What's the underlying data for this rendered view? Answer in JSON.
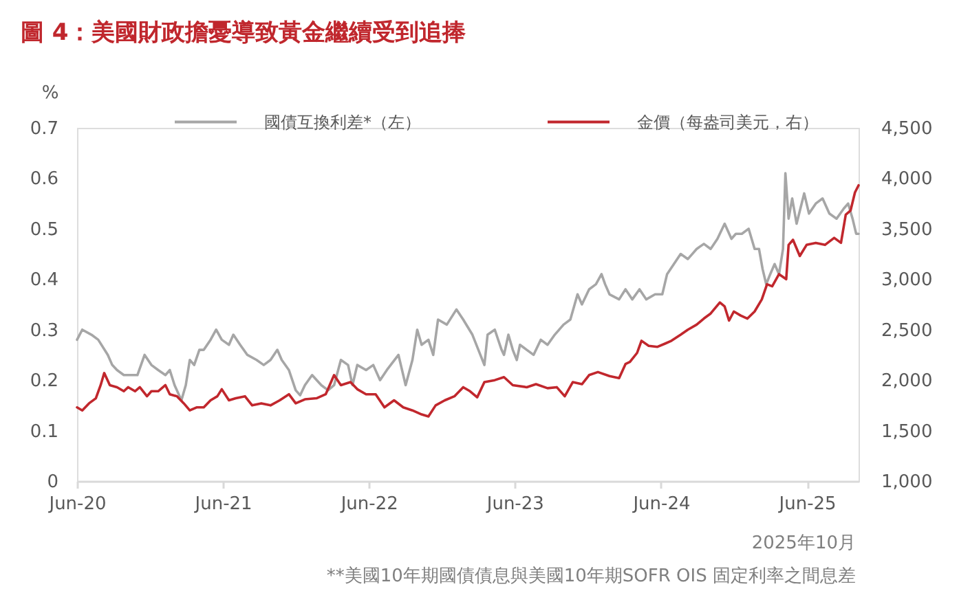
{
  "chart_data": {
    "type": "line",
    "title": "圖 4：美國財政擔憂導致黃金繼續受到追捧",
    "ylabel": "%",
    "annotations": [
      "2025年10月",
      "**美國10年期國債債息與美國10年期SOFR OIS 固定利率之間息差"
    ],
    "legend": "top",
    "xlim": [
      "2020-06-01",
      "2025-10-08"
    ],
    "xticks": [
      {
        "value": "2020-06-01",
        "label": "Jun-20"
      },
      {
        "value": "2021-06-01",
        "label": "Jun-21"
      },
      {
        "value": "2022-06-01",
        "label": "Jun-22"
      },
      {
        "value": "2023-06-01",
        "label": "Jun-23"
      },
      {
        "value": "2024-06-01",
        "label": "Jun-24"
      },
      {
        "value": "2025-06-01",
        "label": "Jun-25"
      }
    ],
    "ylim": [
      0,
      0.7
    ],
    "yticks": [
      0,
      0.1,
      0.2,
      0.3,
      0.4,
      0.5,
      0.6,
      0.7
    ],
    "y2lim": [
      1000,
      4500
    ],
    "y2ticks": [
      {
        "value": 1000,
        "label": "1,000"
      },
      {
        "value": 1500,
        "label": "1,500"
      },
      {
        "value": 2000,
        "label": "2,000"
      },
      {
        "value": 2500,
        "label": "2,500"
      },
      {
        "value": 3000,
        "label": "3,000"
      },
      {
        "value": 3500,
        "label": "3,500"
      },
      {
        "value": 4000,
        "label": "4,000"
      },
      {
        "value": 4500,
        "label": "4,500"
      }
    ],
    "series": [
      {
        "name": "國債互換利差*（左）",
        "color": "#a6a6a6",
        "x": [
          "2020-06-01",
          "2020-06-14",
          "2020-07-07",
          "2020-07-24",
          "2020-08-17",
          "2020-08-28",
          "2020-09-09",
          "2020-09-26",
          "2020-10-13",
          "2020-10-30",
          "2020-11-17",
          "2020-12-04",
          "2020-12-21",
          "2021-01-08",
          "2021-01-19",
          "2021-01-31",
          "2021-02-17",
          "2021-02-28",
          "2021-03-10",
          "2021-03-21",
          "2021-04-03",
          "2021-04-14",
          "2021-05-01",
          "2021-05-15",
          "2021-05-29",
          "2021-06-16",
          "2021-06-27",
          "2021-07-14",
          "2021-08-01",
          "2021-08-24",
          "2021-09-11",
          "2021-09-28",
          "2021-10-15",
          "2021-10-26",
          "2021-11-13",
          "2021-11-30",
          "2021-12-11",
          "2021-12-23",
          "2022-01-10",
          "2022-02-02",
          "2022-02-19",
          "2022-03-06",
          "2022-03-23",
          "2022-04-10",
          "2022-04-21",
          "2022-05-03",
          "2022-05-25",
          "2022-06-12",
          "2022-06-29",
          "2022-07-16",
          "2022-08-14",
          "2022-09-01",
          "2022-09-18",
          "2022-09-30",
          "2022-10-11",
          "2022-10-28",
          "2022-11-09",
          "2022-11-21",
          "2022-12-13",
          "2023-01-06",
          "2023-01-23",
          "2023-02-15",
          "2023-03-02",
          "2023-03-17",
          "2023-03-25",
          "2023-04-12",
          "2023-04-29",
          "2023-05-05",
          "2023-05-16",
          "2023-05-27",
          "2023-06-06",
          "2023-06-14",
          "2023-07-01",
          "2023-07-18",
          "2023-08-05",
          "2023-08-22",
          "2023-09-09",
          "2023-10-01",
          "2023-10-18",
          "2023-11-05",
          "2023-11-16",
          "2023-12-04",
          "2023-12-21",
          "2024-01-04",
          "2024-01-13",
          "2024-01-24",
          "2024-02-17",
          "2024-03-04",
          "2024-03-21",
          "2024-04-08",
          "2024-04-25",
          "2024-05-17",
          "2024-06-04",
          "2024-06-16",
          "2024-07-03",
          "2024-07-20",
          "2024-08-07",
          "2024-08-18",
          "2024-08-29",
          "2024-09-16",
          "2024-10-03",
          "2024-10-20",
          "2024-11-07",
          "2024-11-24",
          "2024-12-05",
          "2024-12-20",
          "2025-01-06",
          "2025-01-21",
          "2025-02-01",
          "2025-02-10",
          "2025-02-19",
          "2025-03-01",
          "2025-03-12",
          "2025-03-23",
          "2025-04-02",
          "2025-04-08",
          "2025-04-16",
          "2025-04-25",
          "2025-05-06",
          "2025-05-25",
          "2025-06-06",
          "2025-06-23",
          "2025-07-10",
          "2025-07-27",
          "2025-08-14",
          "2025-09-01",
          "2025-09-12",
          "2025-09-23",
          "2025-10-02",
          "2025-10-08"
        ],
        "values": [
          0.28,
          0.3,
          0.29,
          0.28,
          0.25,
          0.23,
          0.22,
          0.21,
          0.21,
          0.21,
          0.25,
          0.23,
          0.22,
          0.21,
          0.22,
          0.19,
          0.16,
          0.19,
          0.24,
          0.23,
          0.26,
          0.26,
          0.28,
          0.3,
          0.28,
          0.27,
          0.29,
          0.27,
          0.25,
          0.24,
          0.23,
          0.24,
          0.26,
          0.24,
          0.22,
          0.18,
          0.17,
          0.19,
          0.21,
          0.19,
          0.18,
          0.19,
          0.24,
          0.23,
          0.19,
          0.23,
          0.22,
          0.23,
          0.2,
          0.22,
          0.25,
          0.19,
          0.24,
          0.3,
          0.27,
          0.28,
          0.25,
          0.32,
          0.31,
          0.34,
          0.32,
          0.29,
          0.26,
          0.23,
          0.29,
          0.3,
          0.26,
          0.25,
          0.29,
          0.26,
          0.24,
          0.27,
          0.26,
          0.25,
          0.28,
          0.27,
          0.29,
          0.31,
          0.32,
          0.37,
          0.35,
          0.38,
          0.39,
          0.41,
          0.39,
          0.37,
          0.36,
          0.38,
          0.36,
          0.38,
          0.36,
          0.37,
          0.37,
          0.41,
          0.43,
          0.45,
          0.44,
          0.45,
          0.46,
          0.47,
          0.46,
          0.48,
          0.51,
          0.48,
          0.49,
          0.49,
          0.5,
          0.46,
          0.46,
          0.42,
          0.39,
          0.41,
          0.43,
          0.41,
          0.46,
          0.61,
          0.52,
          0.56,
          0.51,
          0.57,
          0.53,
          0.55,
          0.56,
          0.53,
          0.52,
          0.54,
          0.55,
          0.52,
          0.49,
          0.49
        ]
      },
      {
        "name": "金價（每盎司美元，右）",
        "color": "#c1272d",
        "axis": "y2",
        "x": [
          "2020-06-01",
          "2020-06-14",
          "2020-07-01",
          "2020-07-18",
          "2020-07-30",
          "2020-08-08",
          "2020-08-22",
          "2020-09-09",
          "2020-09-26",
          "2020-10-07",
          "2020-10-24",
          "2020-11-05",
          "2020-11-23",
          "2020-12-04",
          "2020-12-21",
          "2021-01-08",
          "2021-01-19",
          "2021-02-06",
          "2021-02-23",
          "2021-03-10",
          "2021-03-27",
          "2021-04-14",
          "2021-05-01",
          "2021-05-18",
          "2021-05-29",
          "2021-06-16",
          "2021-07-03",
          "2021-07-26",
          "2021-08-13",
          "2021-09-05",
          "2021-09-28",
          "2021-10-21",
          "2021-11-13",
          "2021-11-30",
          "2021-12-23",
          "2022-01-21",
          "2022-02-13",
          "2022-03-06",
          "2022-03-23",
          "2022-04-16",
          "2022-05-03",
          "2022-05-25",
          "2022-06-18",
          "2022-07-10",
          "2022-08-03",
          "2022-08-26",
          "2022-09-18",
          "2022-10-11",
          "2022-10-28",
          "2022-11-15",
          "2022-12-08",
          "2023-01-01",
          "2023-01-23",
          "2023-02-09",
          "2023-02-27",
          "2023-03-17",
          "2023-04-12",
          "2023-05-05",
          "2023-05-27",
          "2023-07-01",
          "2023-07-24",
          "2023-08-22",
          "2023-09-14",
          "2023-10-04",
          "2023-10-24",
          "2023-11-16",
          "2023-12-04",
          "2023-12-26",
          "2024-01-24",
          "2024-02-17",
          "2024-03-04",
          "2024-03-15",
          "2024-04-02",
          "2024-04-13",
          "2024-05-01",
          "2024-05-23",
          "2024-06-10",
          "2024-06-27",
          "2024-07-20",
          "2024-08-07",
          "2024-08-29",
          "2024-09-16",
          "2024-10-03",
          "2024-10-26",
          "2024-11-07",
          "2024-11-18",
          "2024-11-30",
          "2024-12-17",
          "2025-01-03",
          "2025-01-21",
          "2025-02-08",
          "2025-02-21",
          "2025-03-06",
          "2025-03-23",
          "2025-04-10",
          "2025-04-16",
          "2025-04-27",
          "2025-05-14",
          "2025-05-31",
          "2025-06-23",
          "2025-07-16",
          "2025-08-08",
          "2025-08-25",
          "2025-09-06",
          "2025-09-18",
          "2025-09-29",
          "2025-10-08"
        ],
        "values": [
          1730,
          1700,
          1770,
          1820,
          1950,
          2070,
          1950,
          1930,
          1890,
          1930,
          1890,
          1930,
          1840,
          1890,
          1890,
          1950,
          1860,
          1840,
          1770,
          1700,
          1730,
          1730,
          1800,
          1840,
          1910,
          1800,
          1820,
          1840,
          1750,
          1770,
          1750,
          1800,
          1860,
          1770,
          1810,
          1820,
          1860,
          2050,
          1950,
          1980,
          1910,
          1860,
          1860,
          1730,
          1800,
          1730,
          1700,
          1660,
          1640,
          1750,
          1800,
          1840,
          1930,
          1890,
          1830,
          1980,
          2000,
          2030,
          1950,
          1930,
          1960,
          1920,
          1930,
          1840,
          1980,
          1960,
          2050,
          2080,
          2040,
          2020,
          2160,
          2180,
          2270,
          2390,
          2340,
          2330,
          2360,
          2390,
          2450,
          2500,
          2550,
          2610,
          2660,
          2770,
          2730,
          2590,
          2680,
          2640,
          2610,
          2680,
          2800,
          2950,
          2930,
          3050,
          3000,
          3340,
          3390,
          3230,
          3340,
          3360,
          3340,
          3410,
          3360,
          3640,
          3680,
          3860,
          3930
        ]
      }
    ]
  }
}
